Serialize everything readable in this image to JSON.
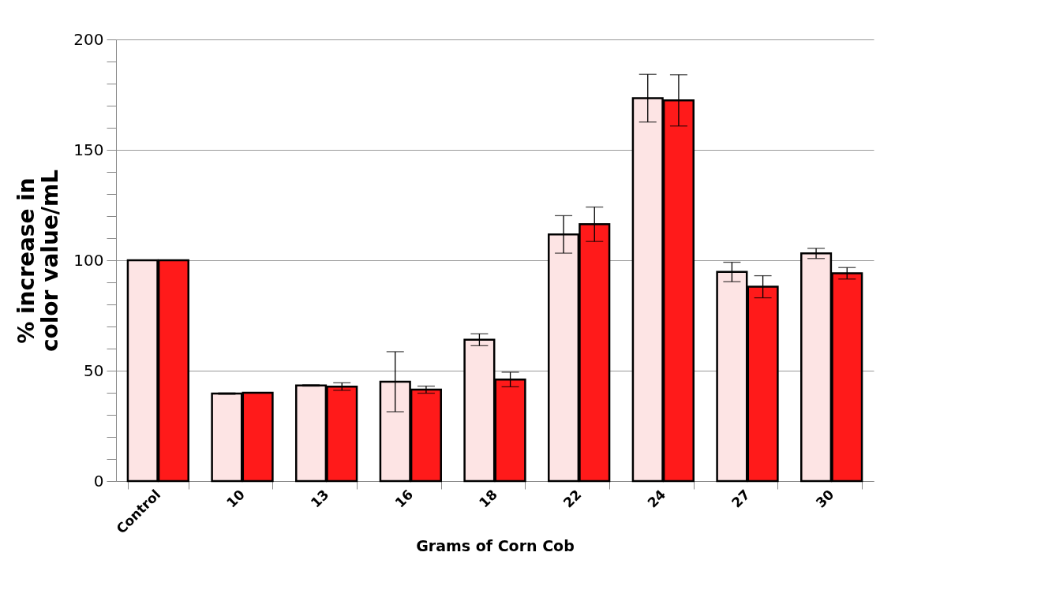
{
  "chart_data": {
    "type": "bar",
    "xlabel": "Grams of Corn Cob",
    "ylabel": "% increase in color value/mL",
    "categories": [
      "Control",
      "10",
      "13",
      "16",
      "18",
      "22",
      "24",
      "27",
      "30"
    ],
    "series": [
      {
        "color": "#fde4e4",
        "values": [
          100,
          39.6,
          43.3,
          45.0,
          64.0,
          111.7,
          173.4,
          94.7,
          103.1
        ],
        "errors": [
          null,
          0.3,
          0.3,
          13.6,
          2.7,
          8.5,
          10.8,
          4.4,
          2.3
        ]
      },
      {
        "color": "#ff1a1a",
        "values": [
          100,
          40.0,
          42.8,
          41.4,
          46.0,
          116.3,
          172.4,
          88.0,
          94.1
        ],
        "errors": [
          null,
          null,
          1.7,
          1.6,
          3.3,
          7.8,
          11.6,
          5.0,
          2.6
        ]
      }
    ],
    "ylim": [
      0,
      200
    ],
    "yticks": [
      0,
      {
        "value": 10,
        "label": null
      },
      {
        "value": 20,
        "label": null
      },
      {
        "value": 30,
        "label": null
      },
      {
        "value": 40,
        "label": null
      },
      50,
      {
        "value": 60,
        "label": null
      },
      {
        "value": 70,
        "label": null
      },
      {
        "value": 80,
        "label": null
      },
      {
        "value": 90,
        "label": null
      },
      100,
      {
        "value": 110,
        "label": null
      },
      {
        "value": 120,
        "label": null
      },
      {
        "value": 130,
        "label": null
      },
      {
        "value": 140,
        "label": null
      },
      150,
      {
        "value": 160,
        "label": null
      },
      {
        "value": 170,
        "label": null
      },
      {
        "value": 180,
        "label": null
      },
      {
        "value": 190,
        "label": null
      },
      200
    ],
    "grid": "y",
    "legend": false
  }
}
